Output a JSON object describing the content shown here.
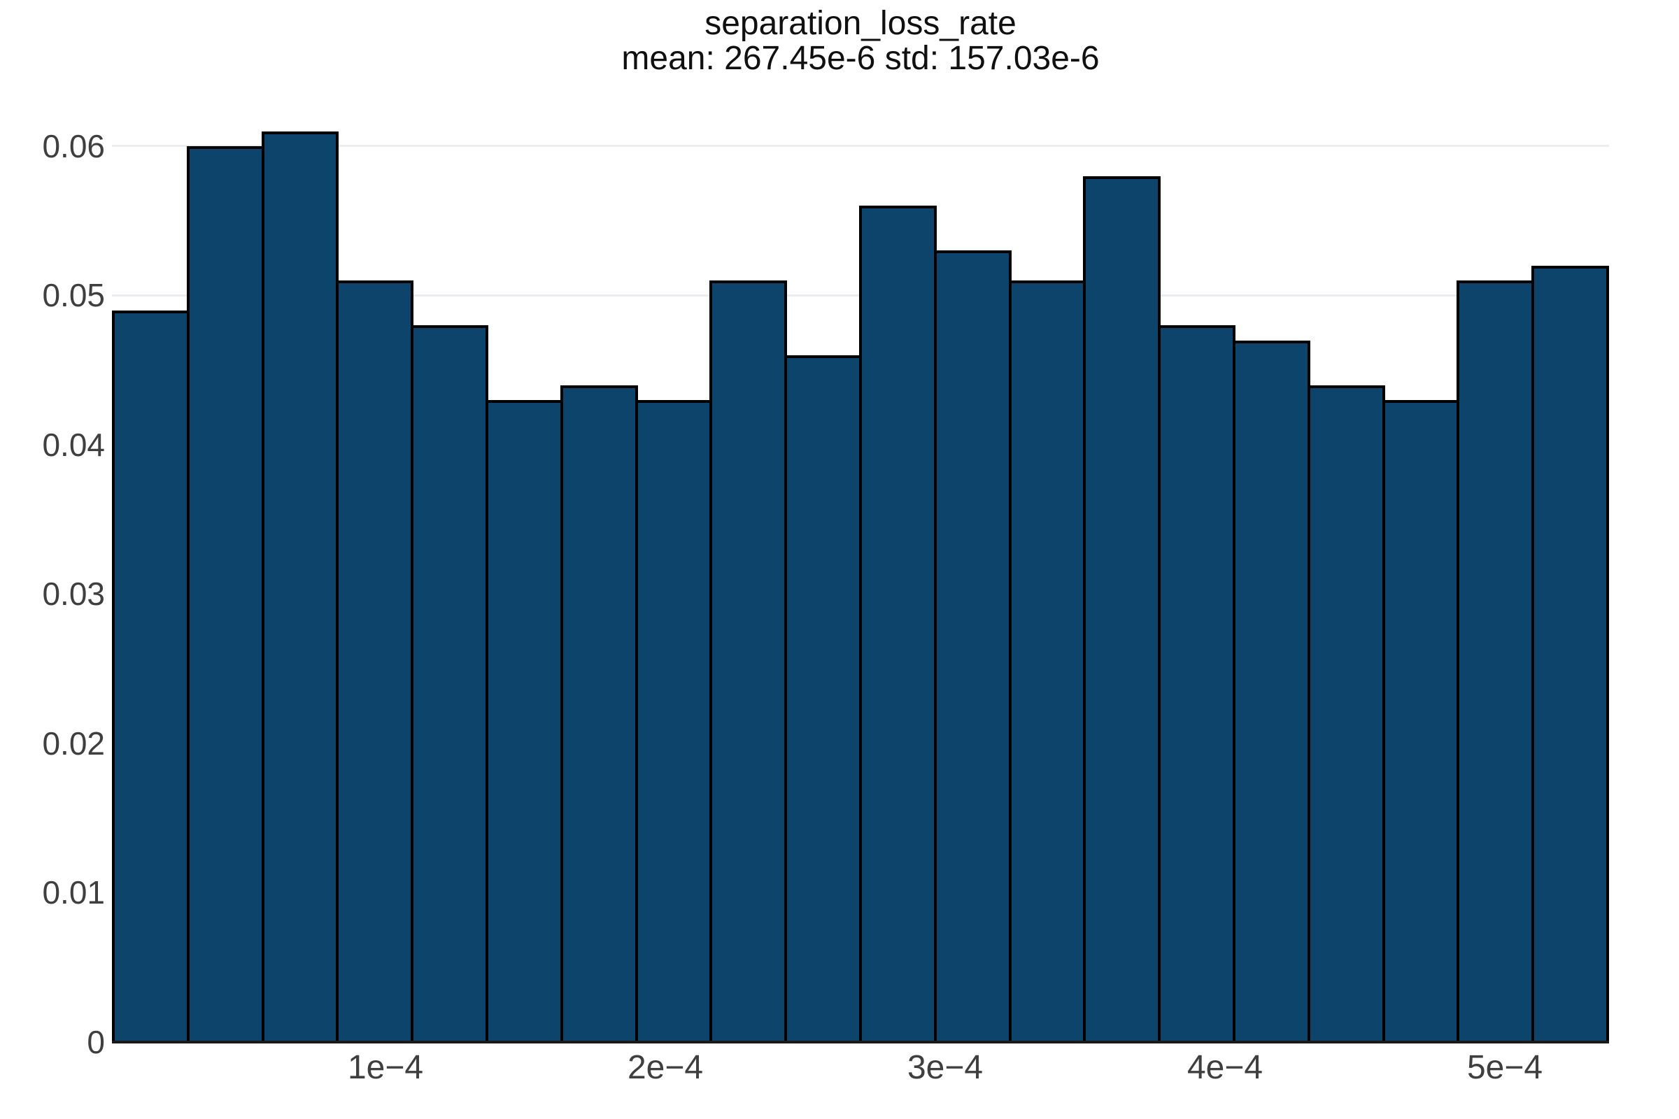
{
  "chart_data": {
    "type": "bar",
    "subtype": "histogram",
    "title": "separation_loss_rate",
    "subtitle": "mean: 267.45e-6 std: 157.03e-6",
    "values": [
      0.049,
      0.06,
      0.061,
      0.051,
      0.048,
      0.043,
      0.044,
      0.043,
      0.051,
      0.046,
      0.056,
      0.053,
      0.051,
      0.058,
      0.048,
      0.047,
      0.044,
      0.043,
      0.051,
      0.052
    ],
    "bins": {
      "start": 2.25e-06,
      "width": 2.675e-05,
      "count": 20
    },
    "xlabel": "",
    "ylabel": "",
    "x_axis": {
      "min": 2.25e-06,
      "max": 0.00053725,
      "ticks": [
        {
          "label": "1e−4",
          "value": 0.0001
        },
        {
          "label": "2e−4",
          "value": 0.0002
        },
        {
          "label": "3e−4",
          "value": 0.0003
        },
        {
          "label": "4e−4",
          "value": 0.0004
        },
        {
          "label": "5e−4",
          "value": 0.0005
        }
      ]
    },
    "y_axis": {
      "min": 0,
      "max": 0.0637,
      "ticks": [
        {
          "label": "0",
          "value": 0
        },
        {
          "label": "0.01",
          "value": 0.01
        },
        {
          "label": "0.02",
          "value": 0.02
        },
        {
          "label": "0.03",
          "value": 0.03
        },
        {
          "label": "0.04",
          "value": 0.04
        },
        {
          "label": "0.05",
          "value": 0.05
        },
        {
          "label": "0.06",
          "value": 0.06
        }
      ]
    },
    "grid": true,
    "legend": false,
    "colors": {
      "bar_fill": "#0d446c",
      "bar_border": "#000000",
      "gridline": "#ebedf0",
      "tick_label": "#3f3f3f",
      "title": "#101010",
      "background": "#ffffff"
    }
  }
}
